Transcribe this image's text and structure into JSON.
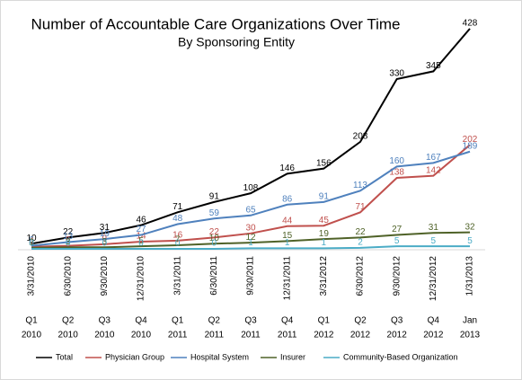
{
  "chart_data": {
    "type": "line",
    "title": "Number of Accountable Care Organizations Over Time",
    "subtitle": "By Sponsoring Entity",
    "categories": [
      "3/31/2010",
      "6/30/2010",
      "9/30/2010",
      "12/31/2010",
      "3/31/2011",
      "6/30/2011",
      "9/30/2011",
      "12/31/2011",
      "3/31/2012",
      "6/30/2012",
      "9/30/2012",
      "12/31/2012",
      "1/31/2013"
    ],
    "quarters": [
      "Q1",
      "Q2",
      "Q3",
      "Q4",
      "Q1",
      "Q2",
      "Q3",
      "Q4",
      "Q1",
      "Q2",
      "Q3",
      "Q4",
      "Jan"
    ],
    "years": [
      "2010",
      "2010",
      "2010",
      "2010",
      "2011",
      "2011",
      "2011",
      "2011",
      "2012",
      "2012",
      "2012",
      "2012",
      "2013"
    ],
    "series": [
      {
        "name": "Total",
        "color": "#000000",
        "values": [
          10,
          22,
          31,
          46,
          71,
          91,
          108,
          146,
          156,
          208,
          330,
          345,
          428
        ]
      },
      {
        "name": "Physician Group",
        "color": "#c0504d",
        "values": [
          4,
          6,
          9,
          14,
          16,
          22,
          30,
          44,
          45,
          71,
          138,
          142,
          202
        ]
      },
      {
        "name": "Hospital System",
        "color": "#4f81bd",
        "values": [
          6,
          13,
          19,
          27,
          48,
          59,
          65,
          86,
          91,
          113,
          160,
          167,
          189
        ]
      },
      {
        "name": "Insurer",
        "color": "#4f6228",
        "values": [
          2,
          3,
          3,
          5,
          7,
          10,
          12,
          15,
          19,
          22,
          27,
          31,
          32
        ]
      },
      {
        "name": "Community-Based Organization",
        "color": "#4bacc6",
        "values": [
          0,
          0,
          0,
          0,
          0,
          0,
          1,
          1,
          1,
          2,
          5,
          5,
          5
        ]
      }
    ],
    "ylim": [
      0,
      440
    ]
  }
}
